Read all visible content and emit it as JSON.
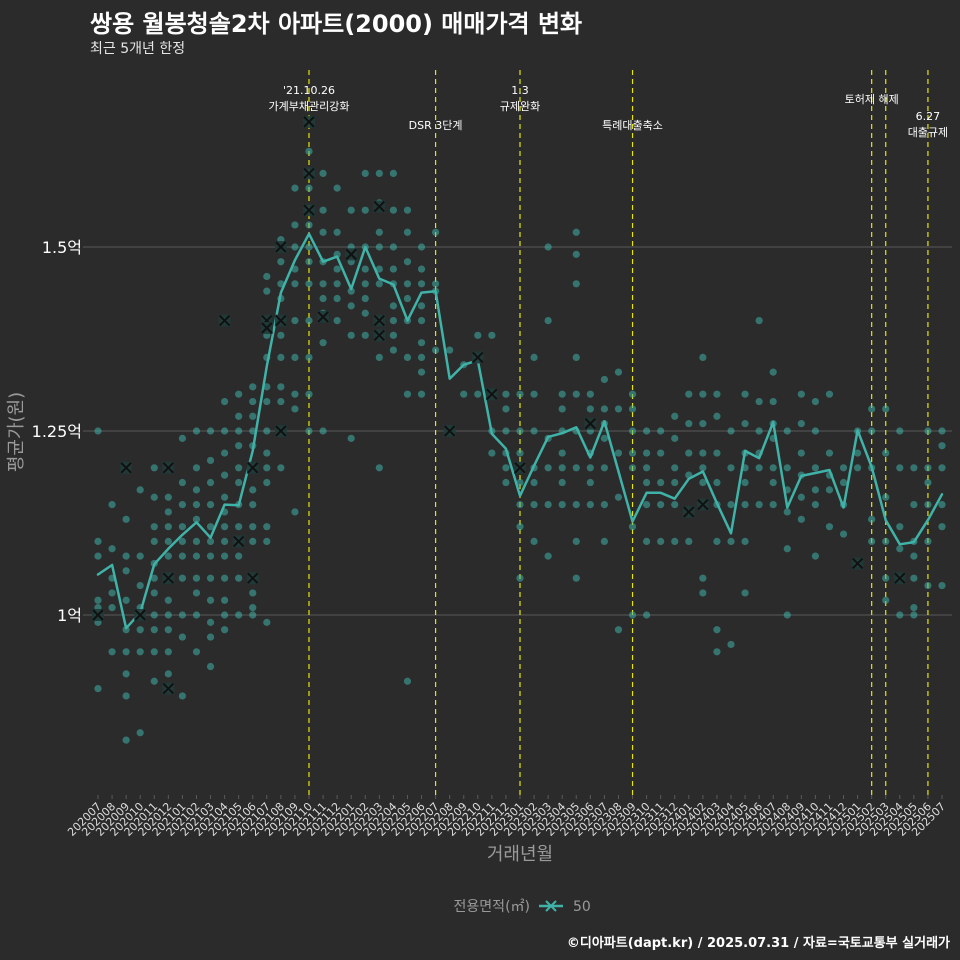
{
  "title": "쌍용 월봉청솔2차 아파트(2000) 매매가격 변화",
  "subtitle": "최근 5개년 한정",
  "footer": "©디아파트(dapt.kr) / 2025.07.31 / 자료=국토교통부 실거래가",
  "colors": {
    "background": "#2b2b2c",
    "series": "#3fb3a8",
    "event_line": "#e6e600",
    "grid": "#5a5a5a",
    "text": "#ffffff",
    "muted": "#9a9a9a"
  },
  "chart_data": {
    "type": "line",
    "xlabel": "거래년월",
    "ylabel": "평균가(원)",
    "x_ticks": [
      "202007",
      "202008",
      "202009",
      "202010",
      "202011",
      "202012",
      "202101",
      "202102",
      "202103",
      "202104",
      "202105",
      "202106",
      "202107",
      "202108",
      "202109",
      "202110",
      "202111",
      "202112",
      "202201",
      "202202",
      "202203",
      "202204",
      "202205",
      "202206",
      "202207",
      "202208",
      "202209",
      "202210",
      "202211",
      "202212",
      "202301",
      "202302",
      "202303",
      "202304",
      "202305",
      "202306",
      "202307",
      "202308",
      "202309",
      "202310",
      "202311",
      "202312",
      "202401",
      "202402",
      "202403",
      "202404",
      "202405",
      "202406",
      "202407",
      "202408",
      "202409",
      "202410",
      "202411",
      "202412",
      "202501",
      "202502",
      "202503",
      "202504",
      "202505",
      "202506",
      "202507"
    ],
    "y_ticks": [
      {
        "value": 100000000,
        "label": "1억"
      },
      {
        "value": 125000000,
        "label": "1.25억"
      },
      {
        "value": 150000000,
        "label": "1.5억"
      }
    ],
    "ylim": [
      76000000,
      172000000
    ],
    "grid": true,
    "legend": {
      "placement": "bottom",
      "title": "전용면적(㎡)",
      "entries": [
        "50"
      ]
    },
    "series": [
      {
        "name": "50",
        "x": [
          "202007",
          "202008",
          "202009",
          "202010",
          "202011",
          "202012",
          "202101",
          "202102",
          "202103",
          "202104",
          "202105",
          "202106",
          "202107",
          "202108",
          "202109",
          "202110",
          "202111",
          "202112",
          "202201",
          "202202",
          "202203",
          "202204",
          "202205",
          "202206",
          "202207",
          "202208",
          "202209",
          "202210",
          "202211",
          "202212",
          "202301",
          "202302",
          "202303",
          "202304",
          "202305",
          "202306",
          "202307",
          "202308",
          "202309",
          "202310",
          "202311",
          "202312",
          "202401",
          "202402",
          "202403",
          "202404",
          "202405",
          "202406",
          "202407",
          "202408",
          "202409",
          "202410",
          "202411",
          "202412",
          "202501",
          "202502",
          "202503",
          "202504",
          "202505",
          "202506",
          "202507"
        ],
        "values": [
          105500000,
          106800000,
          98200000,
          100300000,
          106900000,
          109000000,
          110900000,
          112600000,
          110500000,
          115000000,
          114900000,
          122300000,
          133800000,
          143800000,
          148200000,
          151800000,
          148000000,
          148700000,
          144300000,
          150000000,
          145700000,
          144900000,
          140000000,
          143800000,
          144000000,
          132100000,
          134000000,
          134600000,
          124600000,
          122600000,
          116200000,
          120300000,
          124200000,
          124700000,
          125500000,
          121400000,
          126300000,
          119500000,
          112700000,
          116600000,
          116600000,
          115800000,
          118500000,
          119500000,
          115200000,
          111100000,
          122300000,
          121300000,
          126200000,
          114600000,
          118900000,
          119300000,
          119700000,
          114600000,
          125100000,
          120100000,
          112900000,
          109600000,
          109900000,
          112900000,
          116400000
        ]
      }
    ],
    "scatter_points": [
      [
        "202007",
        [
          125000000,
          110000000,
          108000000,
          102000000,
          101000000,
          100000000,
          99000000,
          90000000
        ]
      ],
      [
        "202008",
        [
          115000000,
          109000000,
          105000000,
          103000000,
          101000000,
          95000000
        ]
      ],
      [
        "202009",
        [
          120000000,
          113000000,
          108000000,
          106000000,
          102000000,
          98000000,
          95000000,
          92000000,
          89000000,
          83000000
        ]
      ],
      [
        "202010",
        [
          117000000,
          108000000,
          104000000,
          101000000,
          100000000,
          98000000,
          95000000,
          84000000
        ]
      ],
      [
        "202011",
        [
          120000000,
          116000000,
          112000000,
          110000000,
          107000000,
          105000000,
          103000000,
          100000000,
          98000000,
          95000000,
          91000000
        ]
      ],
      [
        "202012",
        [
          120000000,
          116000000,
          114000000,
          112000000,
          110000000,
          108000000,
          105000000,
          102000000,
          100000000,
          98000000,
          95000000,
          92000000,
          90000000
        ]
      ],
      [
        "202101",
        [
          124000000,
          118000000,
          115000000,
          112000000,
          110000000,
          108000000,
          105000000,
          100000000,
          97000000,
          89000000
        ]
      ],
      [
        "202102",
        [
          125000000,
          120000000,
          117000000,
          115000000,
          113000000,
          110000000,
          108000000,
          105000000,
          103000000,
          100000000,
          95000000
        ]
      ],
      [
        "202103",
        [
          125000000,
          121000000,
          118000000,
          115000000,
          112000000,
          110000000,
          108000000,
          105000000,
          102000000,
          99000000,
          97000000,
          93000000
        ]
      ],
      [
        "202104",
        [
          140000000,
          129000000,
          125000000,
          122000000,
          119000000,
          116000000,
          114000000,
          112000000,
          110000000,
          108000000,
          105000000,
          102000000,
          100000000,
          98000000
        ]
      ],
      [
        "202105",
        [
          130000000,
          127000000,
          125000000,
          123000000,
          120000000,
          118000000,
          115000000,
          112000000,
          110000000,
          108000000,
          105000000,
          100000000
        ]
      ],
      [
        "202106",
        [
          131000000,
          129000000,
          127000000,
          125000000,
          123000000,
          120000000,
          117000000,
          115000000,
          112000000,
          110000000,
          105000000,
          103000000,
          101000000,
          100000000
        ]
      ],
      [
        "202107",
        [
          146000000,
          144000000,
          140000000,
          138000000,
          135000000,
          131000000,
          129000000,
          125000000,
          122000000,
          120000000,
          118000000,
          112000000,
          110000000,
          99000000
        ]
      ],
      [
        "202108",
        [
          151000000,
          148000000,
          145000000,
          143000000,
          140000000,
          138000000,
          135000000,
          131000000,
          129000000,
          125000000,
          120000000
        ]
      ],
      [
        "202109",
        [
          158000000,
          153000000,
          150000000,
          147000000,
          145000000,
          140000000,
          135000000,
          130000000,
          128000000,
          114000000
        ]
      ],
      [
        "202110",
        [
          167000000,
          163000000,
          160000000,
          158000000,
          155000000,
          153000000,
          150000000,
          148000000,
          145000000,
          140000000,
          135000000,
          130000000,
          125000000
        ]
      ],
      [
        "202111",
        [
          160000000,
          155000000,
          152000000,
          148000000,
          145000000,
          143000000,
          141000000,
          137000000,
          125000000
        ]
      ],
      [
        "202112",
        [
          158000000,
          152000000,
          149000000,
          147000000,
          145000000,
          143000000,
          140000000
        ]
      ],
      [
        "202201",
        [
          155000000,
          150000000,
          148000000,
          144000000,
          142000000,
          138000000,
          124000000
        ]
      ],
      [
        "202202",
        [
          160000000,
          155000000,
          150000000,
          147000000,
          145000000,
          143000000,
          141000000,
          138000000
        ]
      ],
      [
        "202203",
        [
          160000000,
          156000000,
          152000000,
          150000000,
          147000000,
          145000000,
          140000000,
          138000000,
          135000000,
          120000000
        ]
      ],
      [
        "202204",
        [
          160000000,
          155000000,
          150000000,
          147000000,
          145000000,
          142000000,
          140000000,
          138000000,
          136000000
        ]
      ],
      [
        "202205",
        [
          155000000,
          152000000,
          148000000,
          145000000,
          143000000,
          140000000,
          135000000,
          130000000,
          91000000
        ]
      ],
      [
        "202206",
        [
          150000000,
          147000000,
          145000000,
          142000000,
          140000000,
          137000000,
          135000000,
          133000000,
          130000000
        ]
      ],
      [
        "202207",
        [
          152000000,
          145000000,
          144000000,
          136000000
        ]
      ],
      [
        "202208",
        [
          136000000,
          125000000
        ]
      ],
      [
        "202209",
        [
          134000000,
          130000000
        ]
      ],
      [
        "202210",
        [
          138000000,
          135000000,
          130000000
        ]
      ],
      [
        "202211",
        [
          138000000,
          130000000,
          125000000,
          122000000
        ]
      ],
      [
        "202212",
        [
          130000000,
          128000000,
          125000000,
          122000000,
          120000000,
          118000000
        ]
      ],
      [
        "202301",
        [
          130000000,
          125000000,
          122000000,
          120000000,
          118000000,
          115000000,
          112000000,
          105000000
        ]
      ],
      [
        "202302",
        [
          135000000,
          130000000,
          125000000,
          120000000,
          118000000,
          115000000,
          110000000
        ]
      ],
      [
        "202303",
        [
          140000000,
          150000000,
          124000000,
          120000000,
          115000000,
          108000000
        ]
      ],
      [
        "202304",
        [
          130000000,
          128000000,
          125000000,
          122000000,
          120000000,
          118000000,
          115000000
        ]
      ],
      [
        "202305",
        [
          152000000,
          149000000,
          145000000,
          135000000,
          130000000,
          125000000,
          120000000,
          115000000,
          110000000,
          105000000
        ]
      ],
      [
        "202306",
        [
          130000000,
          128000000,
          125000000,
          122000000,
          120000000,
          118000000,
          115000000
        ]
      ],
      [
        "202307",
        [
          132000000,
          128000000,
          126000000,
          124000000,
          120000000,
          115000000,
          110000000
        ]
      ],
      [
        "202308",
        [
          133000000,
          128000000,
          122000000,
          116000000,
          98000000
        ]
      ],
      [
        "202309",
        [
          130000000,
          128000000,
          125000000,
          122000000,
          120000000,
          112000000,
          100000000
        ]
      ],
      [
        "202310",
        [
          125000000,
          122000000,
          120000000,
          118000000,
          115000000,
          110000000,
          100000000
        ]
      ],
      [
        "202311",
        [
          125000000,
          122000000,
          118000000,
          115000000,
          110000000
        ]
      ],
      [
        "202312",
        [
          127000000,
          124000000,
          120000000,
          118000000,
          115000000,
          110000000
        ]
      ],
      [
        "202401",
        [
          130000000,
          126000000,
          122000000,
          119000000,
          114000000,
          110000000
        ]
      ],
      [
        "202402",
        [
          135000000,
          130000000,
          126000000,
          122000000,
          120000000,
          118000000,
          115000000,
          105000000,
          103000000
        ]
      ],
      [
        "202403",
        [
          130000000,
          127000000,
          122000000,
          118000000,
          115000000,
          110000000,
          98000000,
          95000000
        ]
      ],
      [
        "202404",
        [
          125000000,
          120000000,
          115000000,
          110000000,
          96000000
        ]
      ],
      [
        "202405",
        [
          130000000,
          126000000,
          122000000,
          120000000,
          118000000,
          115000000,
          110000000,
          103000000
        ]
      ],
      [
        "202406",
        [
          140000000,
          129000000,
          125000000,
          122000000,
          120000000,
          115000000
        ]
      ],
      [
        "202407",
        [
          133000000,
          129000000,
          126000000,
          124000000,
          120000000,
          118000000,
          115000000
        ]
      ],
      [
        "202408",
        [
          125000000,
          120000000,
          117000000,
          114000000,
          109000000,
          100000000
        ]
      ],
      [
        "202409",
        [
          130000000,
          126000000,
          122000000,
          119000000,
          116000000,
          113000000
        ]
      ],
      [
        "202410",
        [
          129000000,
          125000000,
          120000000,
          117000000,
          115000000,
          108000000
        ]
      ],
      [
        "202411",
        [
          130000000,
          122000000,
          119000000,
          117000000,
          112000000
        ]
      ],
      [
        "202412",
        [
          120000000,
          118000000,
          115000000,
          111000000
        ]
      ],
      [
        "202501",
        [
          125000000,
          122000000,
          120000000,
          107000000
        ]
      ],
      [
        "202502",
        [
          128000000,
          125000000,
          120000000,
          113000000,
          110000000
        ]
      ],
      [
        "202503",
        [
          128000000,
          122000000,
          116000000,
          110000000,
          105000000,
          102000000
        ]
      ],
      [
        "202504",
        [
          125000000,
          120000000,
          112000000,
          109000000,
          105000000,
          100000000
        ]
      ],
      [
        "202505",
        [
          120000000,
          115000000,
          110000000,
          108000000,
          105000000,
          101000000,
          100000000
        ]
      ],
      [
        "202506",
        [
          125000000,
          120000000,
          118000000,
          115000000,
          110000000,
          104000000
        ]
      ],
      [
        "202507",
        [
          125000000,
          123000000,
          120000000,
          115000000,
          112000000,
          104000000
        ]
      ]
    ],
    "highlighted_points": [
      [
        "202007",
        100000000
      ],
      [
        "202009",
        120000000
      ],
      [
        "202010",
        100000000
      ],
      [
        "202012",
        120000000
      ],
      [
        "202012",
        105000000
      ],
      [
        "202012",
        90000000
      ],
      [
        "202104",
        140000000
      ],
      [
        "202105",
        110000000
      ],
      [
        "202106",
        105000000
      ],
      [
        "202106",
        120000000
      ],
      [
        "202107",
        140000000
      ],
      [
        "202107",
        139000000
      ],
      [
        "202108",
        150000000
      ],
      [
        "202108",
        140000000
      ],
      [
        "202108",
        125000000
      ],
      [
        "202110",
        167000000
      ],
      [
        "202110",
        160000000
      ],
      [
        "202110",
        155000000
      ],
      [
        "202111",
        140500000
      ],
      [
        "202201",
        149000000
      ],
      [
        "202203",
        155500000
      ],
      [
        "202203",
        140000000
      ],
      [
        "202203",
        138000000
      ],
      [
        "202208",
        125000000
      ],
      [
        "202210",
        135000000
      ],
      [
        "202211",
        130000000
      ],
      [
        "202301",
        120000000
      ],
      [
        "202306",
        126000000
      ],
      [
        "202401",
        114000000
      ],
      [
        "202402",
        115000000
      ],
      [
        "202501",
        107000000
      ],
      [
        "202504",
        105000000
      ]
    ],
    "events": [
      {
        "x": "202110",
        "label_lines": [
          "'21.10.26",
          "가계부채관리강화"
        ]
      },
      {
        "x": "202207",
        "label_lines": [
          "DSR 3단계"
        ]
      },
      {
        "x": "202301",
        "label_lines": [
          "1.3",
          "규제완화"
        ]
      },
      {
        "x": "202309",
        "label_lines": [
          "특례대출축소"
        ]
      },
      {
        "x": "202502",
        "label_lines": [
          "토허제 해제"
        ]
      },
      {
        "x": "202503",
        "label_lines": []
      },
      {
        "x": "202506",
        "label_lines": [
          "6.27",
          "대출규제"
        ]
      }
    ]
  }
}
